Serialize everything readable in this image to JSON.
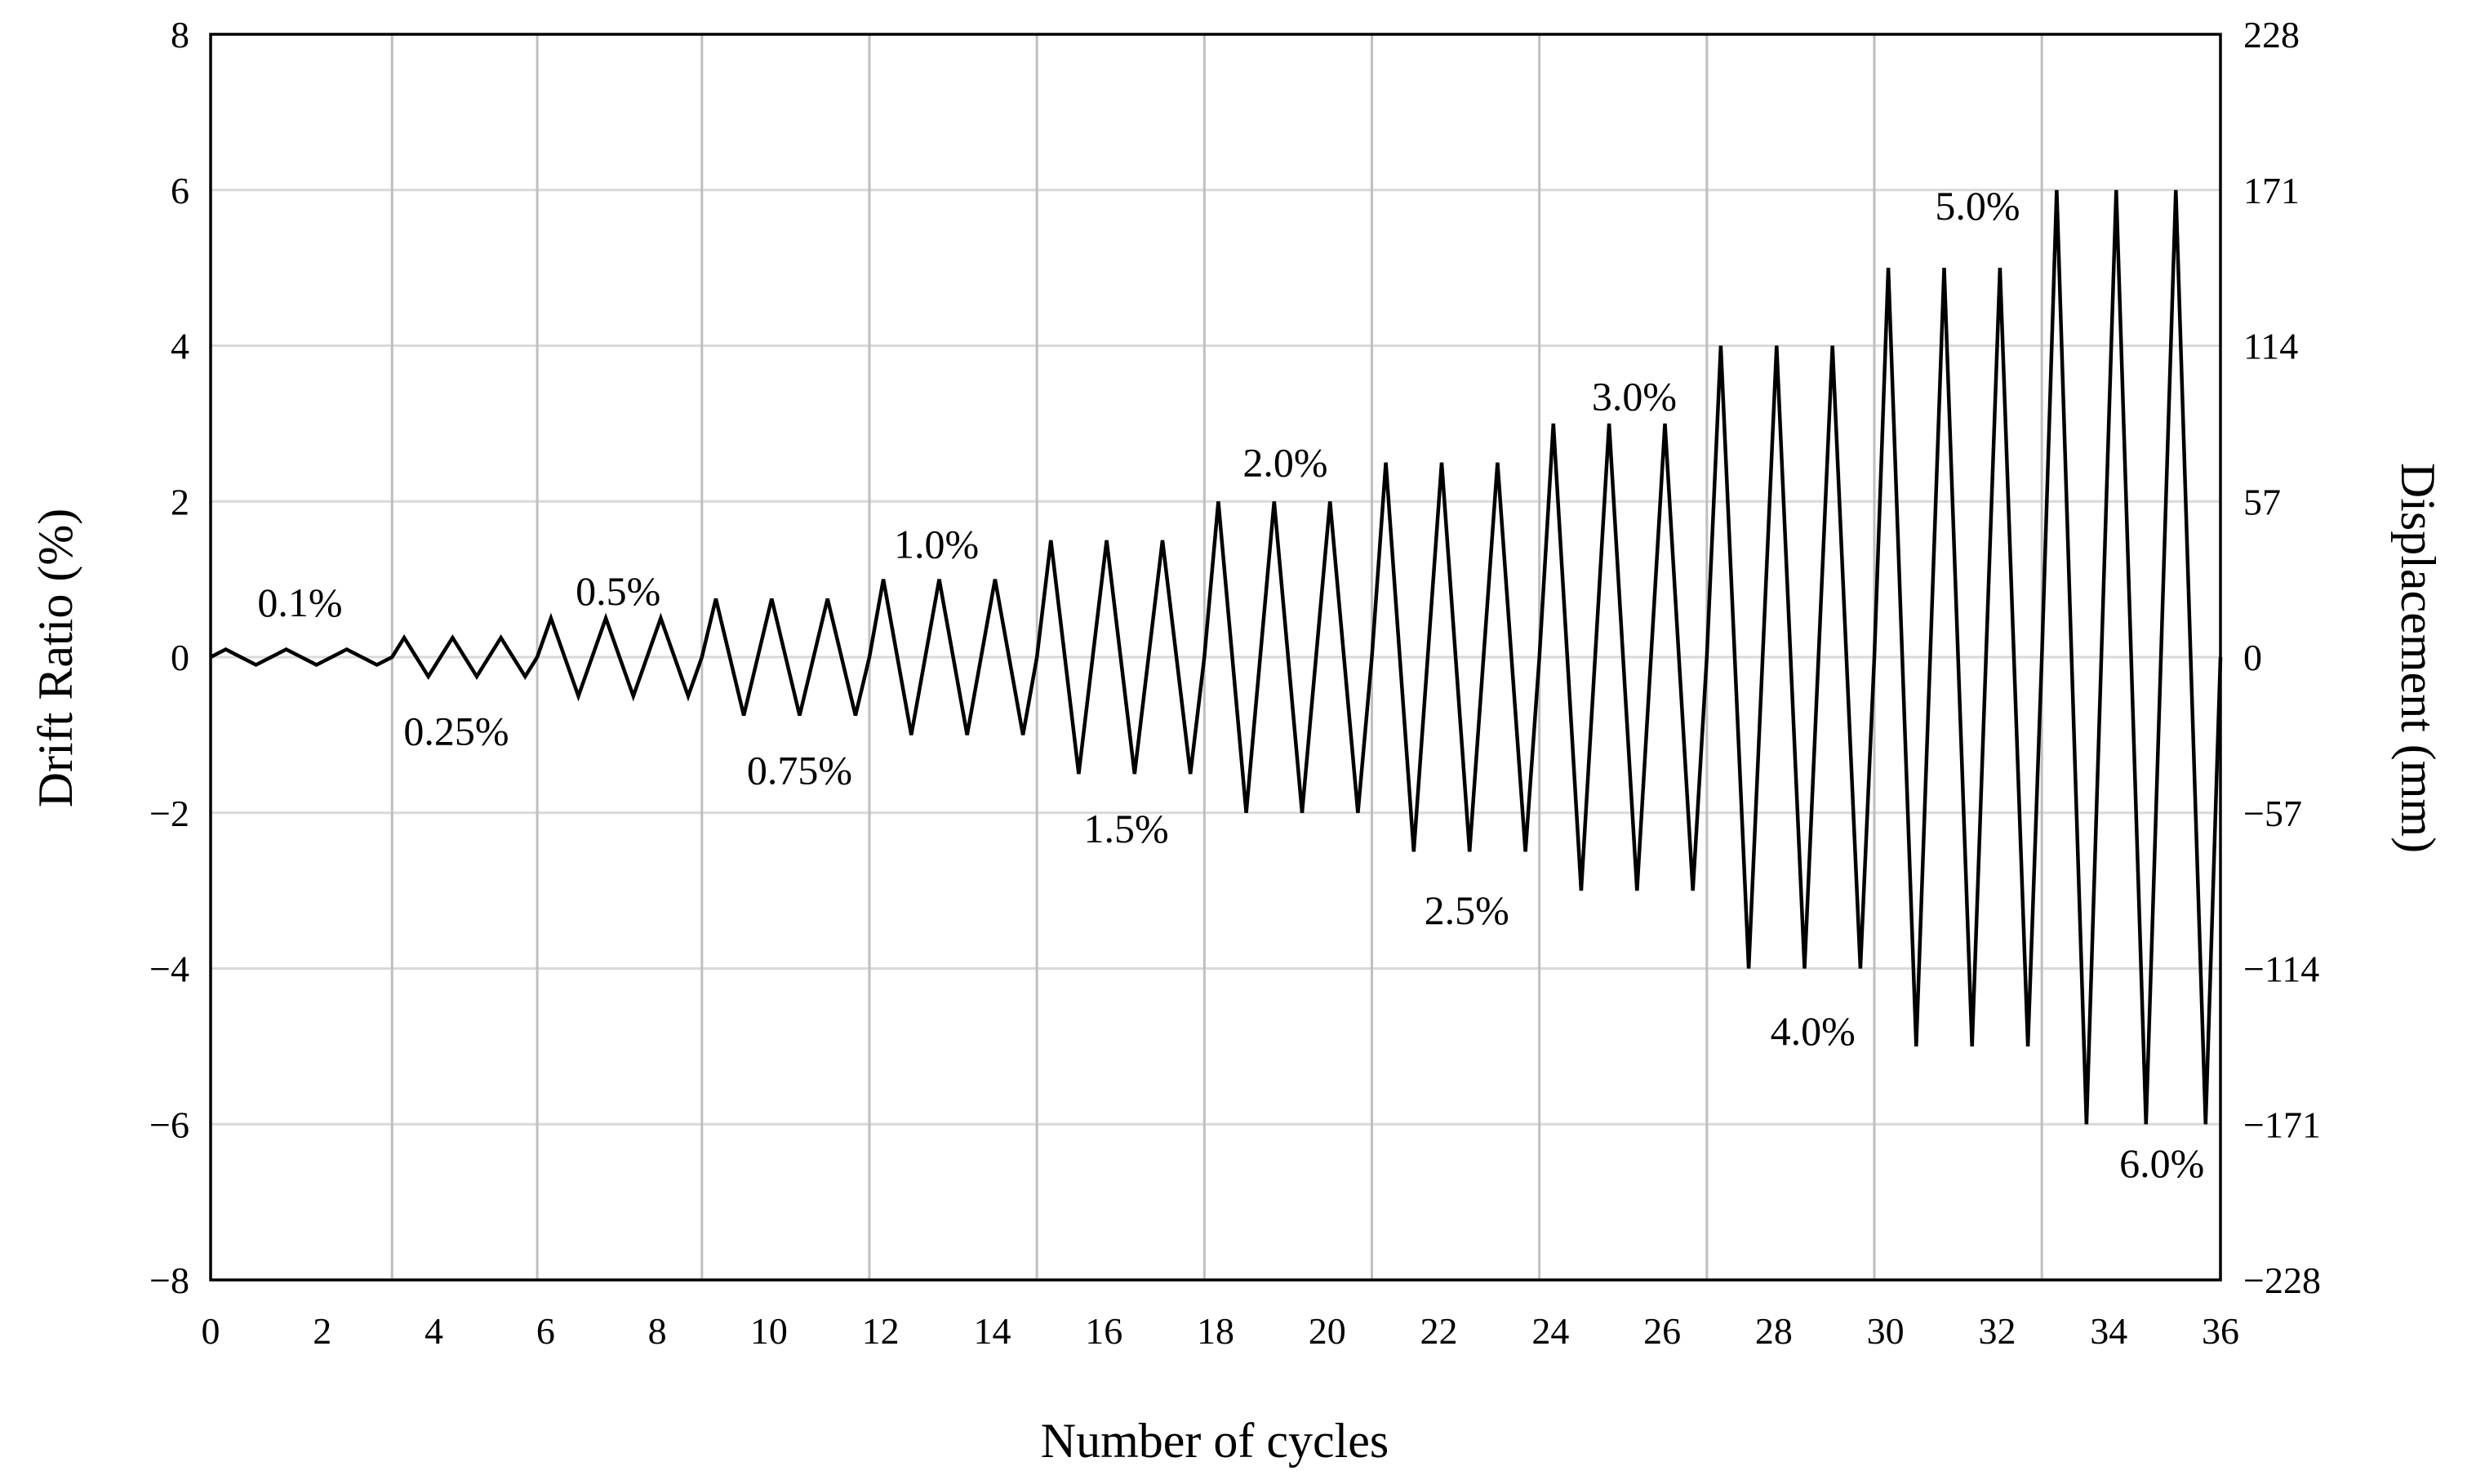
{
  "chart_data": {
    "type": "line",
    "title": "",
    "xlabel": "Number of cycles",
    "ylabel": "Drift Ratio (%)",
    "y2label": "Displacement (mm)",
    "xlim": [
      0,
      36
    ],
    "ylim": [
      -8,
      8
    ],
    "x_tick_labels": [
      "0",
      "2",
      "4",
      "6",
      "8",
      "10",
      "12",
      "14",
      "16",
      "18",
      "20",
      "22",
      "24",
      "26",
      "28",
      "30",
      "32",
      "34",
      "36"
    ],
    "y_tick_labels": [
      "−8",
      "−6",
      "−4",
      "−2",
      "0",
      "2",
      "4",
      "6",
      "8"
    ],
    "y2_tick_labels": [
      "−228",
      "−171",
      "−114",
      "−57",
      "0",
      "57",
      "114",
      "171",
      "228"
    ],
    "grid": {
      "horizontal": true,
      "vertical_at_x": [
        3.25,
        5.85,
        8.8,
        11.8,
        14.8,
        17.8,
        20.8,
        23.8,
        26.8,
        29.8,
        32.8
      ]
    },
    "protocol": [
      {
        "label": "0.1%",
        "amplitude": 0.1,
        "cycles": 3,
        "x_start": 0.0,
        "x_end": 3.25
      },
      {
        "label": "0.25%",
        "amplitude": 0.25,
        "cycles": 3,
        "x_start": 3.25,
        "x_end": 5.85
      },
      {
        "label": "0.5%",
        "amplitude": 0.5,
        "cycles": 3,
        "x_start": 5.85,
        "x_end": 8.8
      },
      {
        "label": "0.75%",
        "amplitude": 0.75,
        "cycles": 3,
        "x_start": 8.8,
        "x_end": 11.8
      },
      {
        "label": "1.0%",
        "amplitude": 1.0,
        "cycles": 3,
        "x_start": 11.8,
        "x_end": 14.8
      },
      {
        "label": "1.5%",
        "amplitude": 1.5,
        "cycles": 3,
        "x_start": 14.8,
        "x_end": 17.8
      },
      {
        "label": "2.0%",
        "amplitude": 2.0,
        "cycles": 3,
        "x_start": 17.8,
        "x_end": 20.8
      },
      {
        "label": "2.5%",
        "amplitude": 2.5,
        "cycles": 3,
        "x_start": 20.8,
        "x_end": 23.8
      },
      {
        "label": "3.0%",
        "amplitude": 3.0,
        "cycles": 3,
        "x_start": 23.8,
        "x_end": 26.8
      },
      {
        "label": "4.0%",
        "amplitude": 4.0,
        "cycles": 3,
        "x_start": 26.8,
        "x_end": 29.8
      },
      {
        "label": "5.0%",
        "amplitude": 5.0,
        "cycles": 3,
        "x_start": 29.8,
        "x_end": 32.8
      },
      {
        "label": "6.0%",
        "amplitude": 6.0,
        "cycles": 3,
        "x_start": 32.8,
        "x_end": 36.0
      }
    ],
    "annotations": [
      {
        "text": "0.1%",
        "x": 1.6,
        "y": 0.7
      },
      {
        "text": "0.25%",
        "x": 4.4,
        "y": -0.95
      },
      {
        "text": "0.5%",
        "x": 7.3,
        "y": 0.85
      },
      {
        "text": "0.75%",
        "x": 10.55,
        "y": -1.45
      },
      {
        "text": "1.0%",
        "x": 13.0,
        "y": 1.45
      },
      {
        "text": "1.5%",
        "x": 16.4,
        "y": -2.2
      },
      {
        "text": "2.0%",
        "x": 19.25,
        "y": 2.5
      },
      {
        "text": "2.5%",
        "x": 22.5,
        "y": -3.25
      },
      {
        "text": "3.0%",
        "x": 25.5,
        "y": 3.35
      },
      {
        "text": "4.0%",
        "x": 28.7,
        "y": -4.8
      },
      {
        "text": "5.0%",
        "x": 31.65,
        "y": 5.8
      },
      {
        "text": "6.0%",
        "x": 34.95,
        "y": -6.5
      }
    ]
  }
}
